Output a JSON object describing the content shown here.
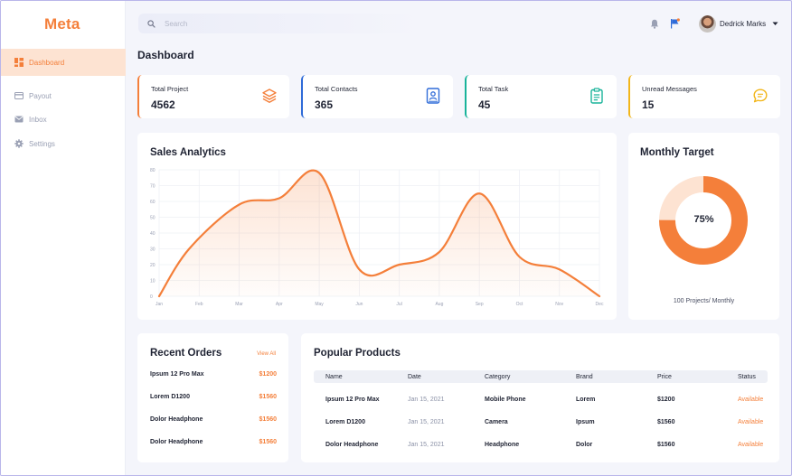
{
  "app": {
    "logo": "Meta"
  },
  "sidebar": {
    "items": [
      {
        "label": "Dashboard",
        "icon": "dashboard-icon",
        "active": true
      },
      {
        "label": "Payout",
        "icon": "card-icon",
        "active": false
      },
      {
        "label": "Inbox",
        "icon": "mail-icon",
        "active": false
      },
      {
        "label": "Settings",
        "icon": "gear-icon",
        "active": false
      }
    ]
  },
  "header": {
    "search_placeholder": "Search",
    "user_name": "Dedrick Marks"
  },
  "page": {
    "title": "Dashboard"
  },
  "stats": [
    {
      "label": "Total Project",
      "value": "4562",
      "color": "#f47f3a",
      "icon": "layers-icon"
    },
    {
      "label": "Total Contacts",
      "value": "365",
      "color": "#2f6bd8",
      "icon": "contact-book-icon"
    },
    {
      "label": "Total Task",
      "value": "45",
      "color": "#19b39a",
      "icon": "clipboard-icon"
    },
    {
      "label": "Unread Messages",
      "value": "15",
      "color": "#f2b61a",
      "icon": "chat-icon"
    }
  ],
  "sales": {
    "title": "Sales Analytics",
    "chart_data": {
      "type": "area",
      "title": "Sales Analytics",
      "categories": [
        "Jan",
        "Feb",
        "Mar",
        "Apr",
        "May",
        "Jun",
        "Jul",
        "Aug",
        "Sep",
        "Oct",
        "Nov",
        "Dec"
      ],
      "x_values": [
        0,
        1,
        2,
        3,
        4,
        5,
        6,
        7,
        8,
        9,
        10,
        11
      ],
      "y_ticks": [
        0,
        10,
        20,
        30,
        40,
        50,
        60,
        70,
        80
      ],
      "ylim": [
        0,
        80
      ],
      "grid": true,
      "series": [
        {
          "name": "Sales",
          "points": [
            [
              0,
              0
            ],
            [
              0.75,
              30
            ],
            [
              2,
              58
            ],
            [
              3,
              62
            ],
            [
              4,
              78
            ],
            [
              5,
              17
            ],
            [
              6,
              20
            ],
            [
              7,
              28
            ],
            [
              8,
              65
            ],
            [
              9,
              25
            ],
            [
              10,
              17
            ],
            [
              11,
              0
            ]
          ]
        }
      ]
    }
  },
  "target": {
    "title": "Monthly Target",
    "percent": 75,
    "percent_label": "75%",
    "caption": "100 Projects/ Monthly",
    "color": "#f47f3a",
    "remainder_color": "#fde3d2"
  },
  "orders": {
    "title": "Recent Orders",
    "view_all": "View All",
    "rows": [
      {
        "name": "Ipsum 12 Pro Max",
        "price": "$1200"
      },
      {
        "name": "Lorem D1200",
        "price": "$1560"
      },
      {
        "name": "Dolor Headphone",
        "price": "$1560"
      },
      {
        "name": "Dolor Headphone",
        "price": "$1560"
      }
    ]
  },
  "products": {
    "title": "Popular Products",
    "columns": {
      "name": "Name",
      "date": "Date",
      "category": "Category",
      "brand": "Brand",
      "price": "Price",
      "status": "Status"
    },
    "rows": [
      {
        "name": "Ipsum 12 Pro Max",
        "date": "Jan 15, 2021",
        "category": "Mobile Phone",
        "brand": "Lorem",
        "price": "$1200",
        "status": "Available"
      },
      {
        "name": "Lorem D1200",
        "date": "Jan 15, 2021",
        "category": "Camera",
        "brand": "Ipsum",
        "price": "$1560",
        "status": "Available"
      },
      {
        "name": "Dolor Headphone",
        "date": "Jan 15, 2021",
        "category": "Headphone",
        "brand": "Dolor",
        "price": "$1560",
        "status": "Available"
      }
    ]
  }
}
